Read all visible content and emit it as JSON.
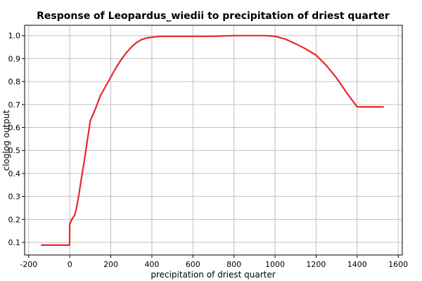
{
  "chart_data": {
    "type": "line",
    "title": "Response of Leopardus_wiedii to precipitation of driest quarter",
    "xlabel": "precipitation of driest quarter",
    "ylabel": "cloglog output",
    "xlim": [
      -220,
      1620
    ],
    "ylim": [
      0.045,
      1.045
    ],
    "x_ticks": [
      -200,
      0,
      200,
      400,
      600,
      800,
      1000,
      1200,
      1400,
      1600
    ],
    "y_ticks": [
      0.1,
      0.2,
      0.3,
      0.4,
      0.5,
      0.6,
      0.7,
      0.8,
      0.9,
      1.0
    ],
    "x_tick_labels": [
      "-200",
      "0",
      "200",
      "400",
      "600",
      "800",
      "1000",
      "1200",
      "1400",
      "1600"
    ],
    "y_tick_labels": [
      "0.1",
      "0.2",
      "0.3",
      "0.4",
      "0.5",
      "0.6",
      "0.7",
      "0.8",
      "0.9",
      "1.0"
    ],
    "grid": true,
    "line_color": "#e8282a",
    "series": [
      {
        "x": [
          -140,
          -1,
          0,
          10,
          25,
          35,
          45,
          55,
          70,
          85,
          100,
          110,
          120,
          135,
          150,
          175,
          200,
          225,
          250,
          275,
          300,
          325,
          350,
          375,
          400,
          450,
          500,
          600,
          700,
          800,
          900,
          950,
          1000,
          1050,
          1100,
          1150,
          1200,
          1250,
          1300,
          1350,
          1400,
          1530
        ],
        "y": [
          0.088,
          0.088,
          0.18,
          0.2,
          0.22,
          0.26,
          0.31,
          0.37,
          0.45,
          0.54,
          0.63,
          0.65,
          0.67,
          0.705,
          0.74,
          0.78,
          0.82,
          0.86,
          0.895,
          0.925,
          0.95,
          0.97,
          0.983,
          0.99,
          0.993,
          0.997,
          0.997,
          0.997,
          0.997,
          1.0,
          1.0,
          1.0,
          0.997,
          0.985,
          0.965,
          0.942,
          0.915,
          0.87,
          0.815,
          0.75,
          0.69,
          0.69
        ]
      }
    ]
  }
}
